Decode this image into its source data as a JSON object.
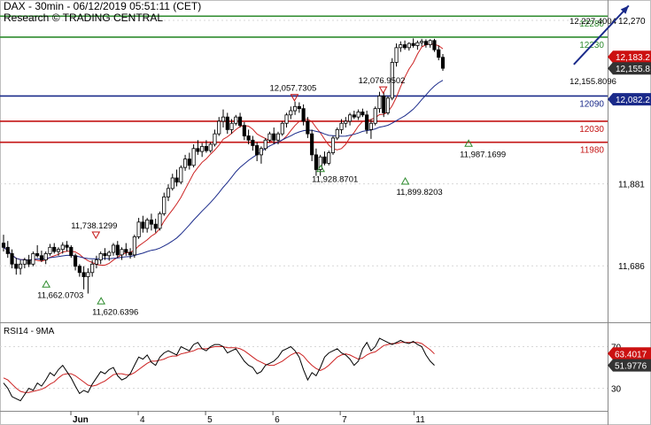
{
  "header": {
    "title": "DAX - 30min - 06/12/2019 05:51:11 (CET)",
    "subtitle": "Research © TRADING CENTRAL"
  },
  "rsi_panel": {
    "label": "RSI14 - 9MA"
  },
  "colors": {
    "candle": "#000000",
    "ma_fast": "#cc2222",
    "ma_slow": "#1a2a8a",
    "resistance": "#2e8b2e",
    "support": "#c41414",
    "pivot": "#1a2a8a",
    "arrow": "#1a2a8a",
    "price_tag": "#cc1111",
    "rsi_line": "#000000",
    "rsi_ma": "#cc2222",
    "triangle_up": "#2e8b2e",
    "triangle_down": "#c41414"
  },
  "chart_data": {
    "type": "candlestick",
    "title": "DAX - 30min - 06/12/2019 05:51:11 (CET)",
    "y_axis_ticks": [
      "12,270",
      "11,881",
      "11,686"
    ],
    "x_axis_ticks": [
      "Jun",
      "4",
      "5",
      "6",
      "7",
      "11"
    ],
    "price_range": [
      11560,
      12310
    ],
    "last_price": "12,155.8",
    "current_tag": "12,183.2",
    "levels": [
      {
        "value": 12280,
        "label": "12280",
        "kind": "resistance"
      },
      {
        "value": 12230,
        "label": "12230",
        "kind": "resistance"
      },
      {
        "value": 12090,
        "label": "12090",
        "kind": "pivot",
        "tag": "12,082.2"
      },
      {
        "value": 12030,
        "label": "12030",
        "kind": "support"
      },
      {
        "value": 11980,
        "label": "11980",
        "kind": "support"
      }
    ],
    "annotations": [
      {
        "text": "12,227.4004",
        "x": 134,
        "y": 12262,
        "marker": "none"
      },
      {
        "text": "12,155.8096",
        "x": 134,
        "y": 12118,
        "marker": "none"
      },
      {
        "text": "12,057.7305",
        "x": 63,
        "y": 12102,
        "marker": "down"
      },
      {
        "text": "12,076.9502",
        "x": 84,
        "y": 12120,
        "marker": "down"
      },
      {
        "text": "11,738.1299",
        "x": 16,
        "y": 11775,
        "marker": "down"
      },
      {
        "text": "11,662.0703",
        "x": 8,
        "y": 11610,
        "marker": "up"
      },
      {
        "text": "11,620.6396",
        "x": 21,
        "y": 11570,
        "marker": "up"
      },
      {
        "text": "11,928.8701",
        "x": 73,
        "y": 11885,
        "marker": "up"
      },
      {
        "text": "11,899.8203",
        "x": 93,
        "y": 11855,
        "marker": "up"
      },
      {
        "text": "11,987.1699",
        "x": 108,
        "y": 11945,
        "marker": "up"
      }
    ],
    "projection": {
      "from": [
        135,
        12165
      ],
      "to": [
        148,
        12305
      ]
    },
    "candles": [
      {
        "o": 11740,
        "h": 11760,
        "l": 11720,
        "c": 11730
      },
      {
        "o": 11730,
        "h": 11745,
        "l": 11705,
        "c": 11715
      },
      {
        "o": 11715,
        "h": 11725,
        "l": 11680,
        "c": 11690
      },
      {
        "o": 11690,
        "h": 11705,
        "l": 11665,
        "c": 11680
      },
      {
        "o": 11680,
        "h": 11700,
        "l": 11665,
        "c": 11690
      },
      {
        "o": 11690,
        "h": 11705,
        "l": 11680,
        "c": 11700
      },
      {
        "o": 11700,
        "h": 11712,
        "l": 11683,
        "c": 11690
      },
      {
        "o": 11690,
        "h": 11720,
        "l": 11685,
        "c": 11715
      },
      {
        "o": 11715,
        "h": 11735,
        "l": 11705,
        "c": 11710
      },
      {
        "o": 11710,
        "h": 11722,
        "l": 11695,
        "c": 11700
      },
      {
        "o": 11700,
        "h": 11720,
        "l": 11690,
        "c": 11715
      },
      {
        "o": 11715,
        "h": 11738,
        "l": 11710,
        "c": 11730
      },
      {
        "o": 11730,
        "h": 11740,
        "l": 11715,
        "c": 11720
      },
      {
        "o": 11720,
        "h": 11730,
        "l": 11710,
        "c": 11725
      },
      {
        "o": 11725,
        "h": 11742,
        "l": 11715,
        "c": 11735
      },
      {
        "o": 11735,
        "h": 11745,
        "l": 11720,
        "c": 11730
      },
      {
        "o": 11730,
        "h": 11735,
        "l": 11705,
        "c": 11710
      },
      {
        "o": 11710,
        "h": 11715,
        "l": 11675,
        "c": 11685
      },
      {
        "o": 11685,
        "h": 11690,
        "l": 11660,
        "c": 11670
      },
      {
        "o": 11670,
        "h": 11685,
        "l": 11630,
        "c": 11660
      },
      {
        "o": 11660,
        "h": 11680,
        "l": 11620,
        "c": 11670
      },
      {
        "o": 11670,
        "h": 11700,
        "l": 11660,
        "c": 11690
      },
      {
        "o": 11690,
        "h": 11710,
        "l": 11680,
        "c": 11700
      },
      {
        "o": 11700,
        "h": 11720,
        "l": 11690,
        "c": 11715
      },
      {
        "o": 11715,
        "h": 11728,
        "l": 11700,
        "c": 11710
      },
      {
        "o": 11710,
        "h": 11722,
        "l": 11698,
        "c": 11718
      },
      {
        "o": 11718,
        "h": 11740,
        "l": 11710,
        "c": 11735
      },
      {
        "o": 11735,
        "h": 11745,
        "l": 11705,
        "c": 11712
      },
      {
        "o": 11712,
        "h": 11730,
        "l": 11700,
        "c": 11725
      },
      {
        "o": 11725,
        "h": 11740,
        "l": 11710,
        "c": 11718
      },
      {
        "o": 11718,
        "h": 11728,
        "l": 11703,
        "c": 11712
      },
      {
        "o": 11712,
        "h": 11760,
        "l": 11705,
        "c": 11755
      },
      {
        "o": 11755,
        "h": 11800,
        "l": 11750,
        "c": 11790
      },
      {
        "o": 11790,
        "h": 11805,
        "l": 11765,
        "c": 11775
      },
      {
        "o": 11775,
        "h": 11800,
        "l": 11765,
        "c": 11795
      },
      {
        "o": 11795,
        "h": 11810,
        "l": 11770,
        "c": 11785
      },
      {
        "o": 11785,
        "h": 11798,
        "l": 11765,
        "c": 11775
      },
      {
        "o": 11775,
        "h": 11815,
        "l": 11770,
        "c": 11810
      },
      {
        "o": 11810,
        "h": 11860,
        "l": 11805,
        "c": 11850
      },
      {
        "o": 11850,
        "h": 11880,
        "l": 11840,
        "c": 11870
      },
      {
        "o": 11870,
        "h": 11905,
        "l": 11865,
        "c": 11895
      },
      {
        "o": 11895,
        "h": 11915,
        "l": 11875,
        "c": 11885
      },
      {
        "o": 11885,
        "h": 11925,
        "l": 11880,
        "c": 11920
      },
      {
        "o": 11920,
        "h": 11950,
        "l": 11912,
        "c": 11940
      },
      {
        "o": 11940,
        "h": 11955,
        "l": 11915,
        "c": 11925
      },
      {
        "o": 11925,
        "h": 11975,
        "l": 11920,
        "c": 11965
      },
      {
        "o": 11965,
        "h": 11985,
        "l": 11950,
        "c": 11958
      },
      {
        "o": 11958,
        "h": 11978,
        "l": 11945,
        "c": 11970
      },
      {
        "o": 11970,
        "h": 11985,
        "l": 11955,
        "c": 11960
      },
      {
        "o": 11960,
        "h": 11980,
        "l": 11955,
        "c": 11975
      },
      {
        "o": 11975,
        "h": 12010,
        "l": 11970,
        "c": 12000
      },
      {
        "o": 12000,
        "h": 12040,
        "l": 11995,
        "c": 12030
      },
      {
        "o": 12030,
        "h": 12058,
        "l": 12015,
        "c": 12040
      },
      {
        "o": 12040,
        "h": 12050,
        "l": 12000,
        "c": 12010
      },
      {
        "o": 12010,
        "h": 12035,
        "l": 12000,
        "c": 12025
      },
      {
        "o": 12025,
        "h": 12045,
        "l": 12020,
        "c": 12040
      },
      {
        "o": 12040,
        "h": 12050,
        "l": 12015,
        "c": 12020
      },
      {
        "o": 12020,
        "h": 12028,
        "l": 11985,
        "c": 11995
      },
      {
        "o": 11995,
        "h": 12010,
        "l": 11975,
        "c": 11985
      },
      {
        "o": 11985,
        "h": 11995,
        "l": 11960,
        "c": 11972
      },
      {
        "o": 11972,
        "h": 11980,
        "l": 11935,
        "c": 11950
      },
      {
        "o": 11950,
        "h": 11970,
        "l": 11929,
        "c": 11965
      },
      {
        "o": 11965,
        "h": 11990,
        "l": 11960,
        "c": 11985
      },
      {
        "o": 11985,
        "h": 12005,
        "l": 11980,
        "c": 12000
      },
      {
        "o": 12000,
        "h": 12015,
        "l": 11975,
        "c": 11985
      },
      {
        "o": 11985,
        "h": 12005,
        "l": 11975,
        "c": 12000
      },
      {
        "o": 12000,
        "h": 12030,
        "l": 11995,
        "c": 12025
      },
      {
        "o": 12025,
        "h": 12050,
        "l": 12015,
        "c": 12045
      },
      {
        "o": 12045,
        "h": 12065,
        "l": 12035,
        "c": 12055
      },
      {
        "o": 12055,
        "h": 12077,
        "l": 12045,
        "c": 12065
      },
      {
        "o": 12065,
        "h": 12075,
        "l": 12050,
        "c": 12060
      },
      {
        "o": 12060,
        "h": 12070,
        "l": 12020,
        "c": 12030
      },
      {
        "o": 12030,
        "h": 12040,
        "l": 11990,
        "c": 12000
      },
      {
        "o": 12000,
        "h": 12010,
        "l": 11935,
        "c": 11950
      },
      {
        "o": 11950,
        "h": 11965,
        "l": 11900,
        "c": 11915
      },
      {
        "o": 11915,
        "h": 11950,
        "l": 11900,
        "c": 11945
      },
      {
        "o": 11945,
        "h": 11958,
        "l": 11925,
        "c": 11930
      },
      {
        "o": 11930,
        "h": 11960,
        "l": 11925,
        "c": 11955
      },
      {
        "o": 11955,
        "h": 11995,
        "l": 11950,
        "c": 11990
      },
      {
        "o": 11990,
        "h": 12015,
        "l": 11985,
        "c": 12010
      },
      {
        "o": 12010,
        "h": 12035,
        "l": 12000,
        "c": 12025
      },
      {
        "o": 12025,
        "h": 12040,
        "l": 12015,
        "c": 12030
      },
      {
        "o": 12030,
        "h": 12050,
        "l": 12020,
        "c": 12045
      },
      {
        "o": 12045,
        "h": 12055,
        "l": 12035,
        "c": 12040
      },
      {
        "o": 12040,
        "h": 12058,
        "l": 12033,
        "c": 12052
      },
      {
        "o": 12052,
        "h": 12060,
        "l": 12040,
        "c": 12045
      },
      {
        "o": 12045,
        "h": 12055,
        "l": 12000,
        "c": 12010
      },
      {
        "o": 12010,
        "h": 12035,
        "l": 11988,
        "c": 12025
      },
      {
        "o": 12025,
        "h": 12065,
        "l": 12020,
        "c": 12060
      },
      {
        "o": 12060,
        "h": 12100,
        "l": 12050,
        "c": 12090
      },
      {
        "o": 12090,
        "h": 12100,
        "l": 12040,
        "c": 12050
      },
      {
        "o": 12050,
        "h": 12090,
        "l": 12045,
        "c": 12085
      },
      {
        "o": 12085,
        "h": 12180,
        "l": 12080,
        "c": 12170
      },
      {
        "o": 12170,
        "h": 12215,
        "l": 12160,
        "c": 12205
      },
      {
        "o": 12205,
        "h": 12220,
        "l": 12195,
        "c": 12212
      },
      {
        "o": 12212,
        "h": 12222,
        "l": 12200,
        "c": 12205
      },
      {
        "o": 12205,
        "h": 12218,
        "l": 12198,
        "c": 12215
      },
      {
        "o": 12215,
        "h": 12227,
        "l": 12205,
        "c": 12210
      },
      {
        "o": 12210,
        "h": 12222,
        "l": 12200,
        "c": 12217
      },
      {
        "o": 12217,
        "h": 12226,
        "l": 12208,
        "c": 12220
      },
      {
        "o": 12220,
        "h": 12225,
        "l": 12205,
        "c": 12212
      },
      {
        "o": 12212,
        "h": 12225,
        "l": 12205,
        "c": 12222
      },
      {
        "o": 12222,
        "h": 12226,
        "l": 12195,
        "c": 12200
      },
      {
        "o": 12200,
        "h": 12210,
        "l": 12175,
        "c": 12182
      },
      {
        "o": 12182,
        "h": 12190,
        "l": 12150,
        "c": 12156
      }
    ],
    "rsi": {
      "ticks": [
        "70",
        "30"
      ],
      "last_rsi": "51.9776",
      "last_ma": "63.4017",
      "rsi_values": [
        35,
        30,
        22,
        20,
        18,
        24,
        30,
        28,
        35,
        32,
        38,
        45,
        42,
        48,
        52,
        46,
        40,
        32,
        25,
        28,
        26,
        34,
        40,
        46,
        44,
        48,
        50,
        42,
        38,
        40,
        44,
        52,
        60,
        58,
        62,
        55,
        52,
        60,
        64,
        66,
        64,
        62,
        70,
        68,
        66,
        72,
        74,
        68,
        66,
        70,
        72,
        72,
        70,
        64,
        66,
        68,
        62,
        56,
        52,
        50,
        44,
        46,
        52,
        54,
        56,
        60,
        66,
        68,
        70,
        66,
        60,
        48,
        38,
        45,
        42,
        50,
        60,
        64,
        66,
        68,
        64,
        62,
        58,
        52,
        56,
        68,
        74,
        66,
        70,
        78,
        76,
        74,
        72,
        74,
        76,
        74,
        73,
        75,
        72,
        70,
        62,
        56,
        52
      ],
      "ma_values": [
        40,
        38,
        34,
        30,
        27,
        26,
        26,
        27,
        28,
        29,
        31,
        34,
        36,
        40,
        43,
        44,
        44,
        42,
        39,
        36,
        33,
        32,
        33,
        35,
        37,
        40,
        43,
        44,
        44,
        43,
        43,
        45,
        48,
        51,
        54,
        56,
        56,
        57,
        58,
        60,
        61,
        61,
        63,
        64,
        65,
        66,
        68,
        68,
        68,
        69,
        70,
        70,
        70,
        69,
        69,
        69,
        68,
        66,
        63,
        60,
        57,
        55,
        53,
        52,
        52,
        54,
        56,
        59,
        62,
        64,
        64,
        61,
        56,
        52,
        49,
        47,
        49,
        52,
        56,
        60,
        62,
        63,
        62,
        60,
        58,
        59,
        62,
        64,
        65,
        68,
        71,
        72,
        73,
        73,
        74,
        74,
        74,
        74,
        74,
        73,
        70,
        67,
        63
      ]
    }
  }
}
